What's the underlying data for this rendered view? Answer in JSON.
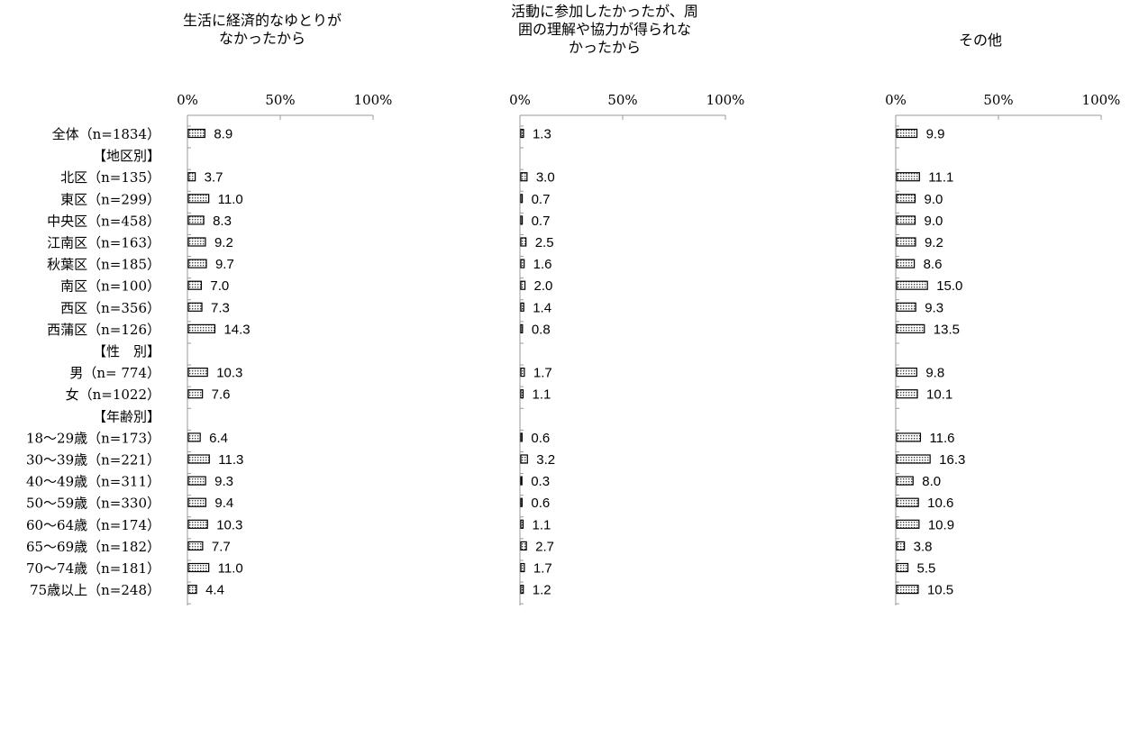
{
  "chart_data": {
    "type": "bar",
    "orientation": "horizontal",
    "categories": [
      "全体（n=1834）",
      "【地区別】",
      "北区（n=135）",
      "東区（n=299）",
      "中央区（n=458）",
      "江南区（n=163）",
      "秋葉区（n=185）",
      "南区（n=100）",
      "西区（n=356）",
      "西蒲区（n=126）",
      "【性　別】",
      "男（n= 774）",
      "女（n=1022）",
      "【年齢別】",
      "18～29歳（n=173）",
      "30～39歳（n=221）",
      "40～49歳（n=311）",
      "50～59歳（n=330）",
      "60～64歳（n=174）",
      "65～69歳（n=182）",
      "70～74歳（n=181）",
      "75歳以上（n=248）"
    ],
    "xlim": [
      0,
      100
    ],
    "ticks": [
      "0%",
      "50%",
      "100%"
    ],
    "tick_values": [
      0,
      50,
      100
    ],
    "grid": false,
    "legend": "none",
    "bar_fill": "dotted",
    "panels": [
      {
        "title_lines": [
          "生活に経済的なゆとりが",
          "なかったから"
        ],
        "values": [
          8.9,
          null,
          3.7,
          11.0,
          8.3,
          9.2,
          9.7,
          7.0,
          7.3,
          14.3,
          null,
          10.3,
          7.6,
          null,
          6.4,
          11.3,
          9.3,
          9.4,
          10.3,
          7.7,
          11.0,
          4.4
        ],
        "labels": [
          "8.9",
          "",
          "3.7",
          "11.0",
          "8.3",
          "9.2",
          "9.7",
          "7.0",
          "7.3",
          "14.3",
          "",
          "10.3",
          "7.6",
          "",
          "6.4",
          "11.3",
          "9.3",
          "9.4",
          "10.3",
          "7.7",
          "11.0",
          "4.4"
        ]
      },
      {
        "title_lines": [
          "活動に参加したかったが、周",
          "囲の理解や協力が得られな",
          "かったから"
        ],
        "values": [
          1.3,
          null,
          3.0,
          0.7,
          0.7,
          2.5,
          1.6,
          2.0,
          1.4,
          0.8,
          null,
          1.7,
          1.1,
          null,
          0.6,
          3.2,
          0.3,
          0.6,
          1.1,
          2.7,
          1.7,
          1.2
        ],
        "labels": [
          "1.3",
          "",
          "3.0",
          "0.7",
          "0.7",
          "2.5",
          "1.6",
          "2.0",
          "1.4",
          "0.8",
          "",
          "1.7",
          "1.1",
          "",
          "0.6",
          "3.2",
          "0.3",
          "0.6",
          "1.1",
          "2.7",
          "1.7",
          "1.2"
        ]
      },
      {
        "title_lines": [
          "その他"
        ],
        "values": [
          9.9,
          null,
          11.1,
          9.0,
          9.0,
          9.2,
          8.6,
          15.0,
          9.3,
          13.5,
          null,
          9.8,
          10.1,
          null,
          11.6,
          16.3,
          8.0,
          10.6,
          10.9,
          3.8,
          5.5,
          10.5
        ],
        "labels": [
          "9.9",
          "",
          "11.1",
          "9.0",
          "9.0",
          "9.2",
          "8.6",
          "15.0",
          "9.3",
          "13.5",
          "",
          "9.8",
          "10.1",
          "",
          "11.6",
          "16.3",
          "8.0",
          "10.6",
          "10.9",
          "3.8",
          "5.5",
          "10.5"
        ]
      }
    ]
  },
  "colors": {
    "bar_border": "#000000",
    "bar_dot": "#555555",
    "bar_bg": "#ffffff",
    "axis": "#999999",
    "text": "#000000"
  }
}
